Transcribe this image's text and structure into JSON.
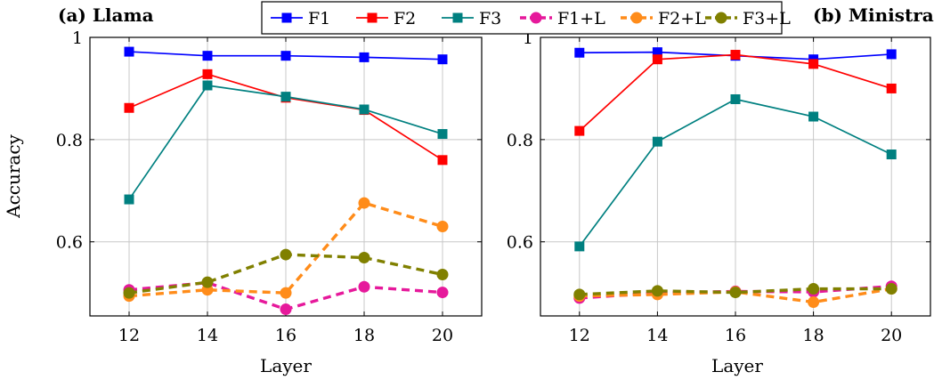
{
  "legend": [
    {
      "name": "F1",
      "color": "#0000ff",
      "dashed": false,
      "marker": "square"
    },
    {
      "name": "F2",
      "color": "#ff0000",
      "dashed": false,
      "marker": "square"
    },
    {
      "name": "F3",
      "color": "#008080",
      "dashed": false,
      "marker": "square"
    },
    {
      "name": "F1+L",
      "color": "#e6199b",
      "dashed": true,
      "marker": "circle"
    },
    {
      "name": "F2+L",
      "color": "#ff8c1a",
      "dashed": true,
      "marker": "circle"
    },
    {
      "name": "F3+L",
      "color": "#808000",
      "dashed": true,
      "marker": "circle"
    }
  ],
  "chart_data": [
    {
      "type": "line",
      "title": "(a) Llama",
      "xlabel": "Layer",
      "ylabel": "Accuracy",
      "x": [
        12,
        14,
        16,
        18,
        20
      ],
      "xlim": [
        11,
        21
      ],
      "ylim": [
        0.455,
        1.0
      ],
      "yticks": [
        "0.6",
        "0.8",
        "1"
      ],
      "ytick_values": [
        0.6,
        0.8,
        1.0
      ],
      "grid": true,
      "series": [
        {
          "name": "F1",
          "values": [
            0.972,
            0.964,
            0.964,
            0.961,
            0.957
          ]
        },
        {
          "name": "F2",
          "values": [
            0.862,
            0.928,
            0.882,
            0.858,
            0.76
          ]
        },
        {
          "name": "F3",
          "values": [
            0.683,
            0.906,
            0.884,
            0.859,
            0.811
          ]
        },
        {
          "name": "F1+L",
          "values": [
            0.506,
            0.52,
            0.468,
            0.512,
            0.501
          ]
        },
        {
          "name": "F2+L",
          "values": [
            0.494,
            0.506,
            0.5,
            0.676,
            0.63
          ]
        },
        {
          "name": "F3+L",
          "values": [
            0.5,
            0.521,
            0.575,
            0.569,
            0.536
          ]
        }
      ]
    },
    {
      "type": "line",
      "title": "(b) Ministral",
      "xlabel": "Layer",
      "ylabel": "",
      "x": [
        12,
        14,
        16,
        18,
        20
      ],
      "xlim": [
        11,
        21
      ],
      "ylim": [
        0.455,
        1.0
      ],
      "yticks": [
        "0.6",
        "0.8",
        "1"
      ],
      "ytick_values": [
        0.6,
        0.8,
        1.0
      ],
      "grid": true,
      "series": [
        {
          "name": "F1",
          "values": [
            0.97,
            0.971,
            0.964,
            0.957,
            0.967
          ]
        },
        {
          "name": "F2",
          "values": [
            0.817,
            0.957,
            0.966,
            0.948,
            0.9
          ]
        },
        {
          "name": "F3",
          "values": [
            0.591,
            0.796,
            0.879,
            0.845,
            0.771
          ]
        },
        {
          "name": "F1+L",
          "values": [
            0.49,
            0.5,
            0.503,
            0.502,
            0.513
          ]
        },
        {
          "name": "F2+L",
          "values": [
            0.494,
            0.497,
            0.502,
            0.482,
            0.508
          ]
        },
        {
          "name": "F3+L",
          "values": [
            0.497,
            0.504,
            0.501,
            0.508,
            0.508
          ]
        }
      ]
    }
  ]
}
